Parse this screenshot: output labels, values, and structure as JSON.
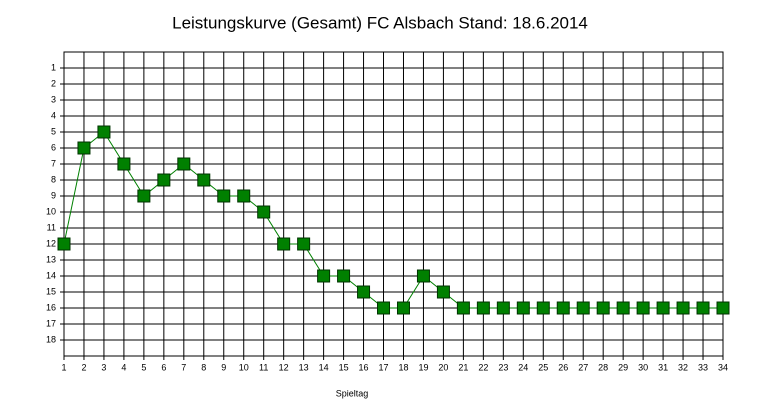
{
  "chart_data": {
    "type": "line",
    "title": "Leistungskurve (Gesamt) FC Alsbach Stand: 18.6.2014",
    "x_label": "Spieltag",
    "x": [
      1,
      2,
      3,
      4,
      5,
      6,
      7,
      8,
      9,
      10,
      11,
      12,
      13,
      14,
      15,
      16,
      17,
      18,
      19,
      20,
      21,
      22,
      23,
      24,
      25,
      26,
      27,
      28,
      29,
      30,
      31,
      32,
      33,
      34
    ],
    "values": [
      12,
      6,
      5,
      7,
      9,
      8,
      7,
      8,
      9,
      9,
      10,
      12,
      12,
      14,
      14,
      15,
      16,
      16,
      14,
      15,
      16,
      16,
      16,
      16,
      16,
      16,
      16,
      16,
      16,
      16,
      16,
      16,
      16,
      16
    ],
    "color": "#008000",
    "xlim": [
      1,
      34
    ],
    "xticks": [
      1,
      2,
      3,
      4,
      5,
      6,
      7,
      8,
      9,
      10,
      11,
      12,
      13,
      14,
      15,
      16,
      17,
      18,
      19,
      20,
      21,
      22,
      23,
      24,
      25,
      26,
      27,
      28,
      29,
      30,
      31,
      32,
      33,
      34
    ],
    "ylim": [
      19,
      0
    ],
    "yticks": [
      1,
      2,
      3,
      4,
      5,
      6,
      7,
      8,
      9,
      10,
      11,
      12,
      13,
      14,
      15,
      16,
      17,
      18
    ],
    "grid": true
  }
}
